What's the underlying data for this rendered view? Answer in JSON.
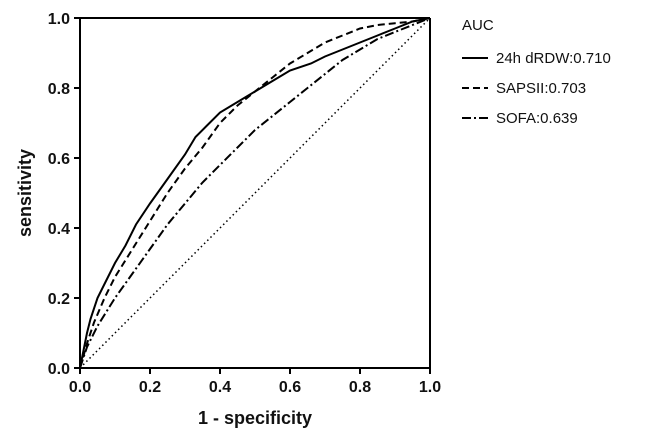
{
  "chart_data": {
    "type": "line",
    "xlabel": "1 - specificity",
    "ylabel": "sensitivity",
    "xlim": [
      0,
      1
    ],
    "ylim": [
      0,
      1
    ],
    "xticks": [
      "0.0",
      "0.2",
      "0.4",
      "0.6",
      "0.8",
      "1.0"
    ],
    "yticks": [
      "0.0",
      "0.2",
      "0.4",
      "0.6",
      "0.8",
      "1.0"
    ],
    "grid": false,
    "legend_placement": "right",
    "legend_title": "AUC",
    "series": [
      {
        "name": "24h dRDW",
        "auc": "0.710",
        "line_style": "solid",
        "x": [
          0,
          0.01,
          0.02,
          0.03,
          0.05,
          0.07,
          0.1,
          0.13,
          0.16,
          0.2,
          0.25,
          0.3,
          0.33,
          0.36,
          0.4,
          0.45,
          0.5,
          0.55,
          0.6,
          0.66,
          0.7,
          0.75,
          0.8,
          0.85,
          0.9,
          0.95,
          1.0
        ],
        "y": [
          0,
          0.05,
          0.1,
          0.14,
          0.2,
          0.24,
          0.3,
          0.35,
          0.41,
          0.47,
          0.54,
          0.61,
          0.66,
          0.69,
          0.73,
          0.76,
          0.79,
          0.82,
          0.85,
          0.87,
          0.89,
          0.91,
          0.93,
          0.95,
          0.97,
          0.99,
          1.0
        ]
      },
      {
        "name": "SAPSII",
        "auc": "0.703",
        "line_style": "dashed",
        "x": [
          0,
          0.02,
          0.04,
          0.07,
          0.1,
          0.15,
          0.2,
          0.25,
          0.3,
          0.35,
          0.4,
          0.45,
          0.5,
          0.55,
          0.6,
          0.65,
          0.7,
          0.75,
          0.8,
          0.85,
          0.9,
          0.95,
          1.0
        ],
        "y": [
          0,
          0.07,
          0.13,
          0.2,
          0.26,
          0.34,
          0.42,
          0.5,
          0.57,
          0.63,
          0.7,
          0.75,
          0.79,
          0.83,
          0.87,
          0.9,
          0.93,
          0.95,
          0.97,
          0.98,
          0.985,
          0.99,
          1.0
        ]
      },
      {
        "name": "SOFA",
        "auc": "0.639",
        "line_style": "dash-dot",
        "x": [
          0,
          0.02,
          0.05,
          0.1,
          0.15,
          0.2,
          0.25,
          0.3,
          0.35,
          0.4,
          0.45,
          0.5,
          0.55,
          0.6,
          0.65,
          0.7,
          0.75,
          0.8,
          0.85,
          0.9,
          0.95,
          1.0
        ],
        "y": [
          0,
          0.06,
          0.12,
          0.2,
          0.27,
          0.34,
          0.41,
          0.47,
          0.53,
          0.58,
          0.63,
          0.68,
          0.72,
          0.76,
          0.8,
          0.84,
          0.88,
          0.91,
          0.94,
          0.96,
          0.98,
          1.0
        ]
      },
      {
        "name": "reference",
        "line_style": "dotted",
        "x": [
          0,
          1
        ],
        "y": [
          0,
          1
        ]
      }
    ]
  }
}
